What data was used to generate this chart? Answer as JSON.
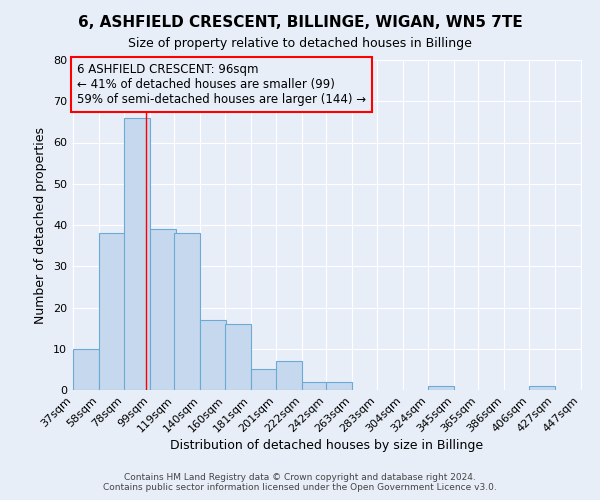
{
  "title": "6, ASHFIELD CRESCENT, BILLINGE, WIGAN, WN5 7TE",
  "subtitle": "Size of property relative to detached houses in Billinge",
  "xlabel": "Distribution of detached houses by size in Billinge",
  "ylabel": "Number of detached properties",
  "bar_left_edges": [
    37,
    58,
    78,
    99,
    119,
    140,
    160,
    181,
    201,
    222,
    242,
    263,
    283,
    304,
    324,
    345,
    365,
    386,
    406,
    427
  ],
  "bar_heights": [
    10,
    38,
    66,
    39,
    38,
    17,
    16,
    5,
    7,
    2,
    2,
    0,
    0,
    0,
    1,
    0,
    0,
    0,
    1,
    0
  ],
  "bin_width": 21,
  "tick_labels": [
    "37sqm",
    "58sqm",
    "78sqm",
    "99sqm",
    "119sqm",
    "140sqm",
    "160sqm",
    "181sqm",
    "201sqm",
    "222sqm",
    "242sqm",
    "263sqm",
    "283sqm",
    "304sqm",
    "324sqm",
    "345sqm",
    "365sqm",
    "386sqm",
    "406sqm",
    "427sqm",
    "447sqm"
  ],
  "bar_color": "#c5d8ee",
  "bar_edge_color": "#6aaad4",
  "property_line_x": 96,
  "ylim": [
    0,
    80
  ],
  "yticks": [
    0,
    10,
    20,
    30,
    40,
    50,
    60,
    70,
    80
  ],
  "annotation_title": "6 ASHFIELD CRESCENT: 96sqm",
  "annotation_line1": "← 41% of detached houses are smaller (99)",
  "annotation_line2": "59% of semi-detached houses are larger (144) →",
  "footer1": "Contains HM Land Registry data © Crown copyright and database right 2024.",
  "footer2": "Contains public sector information licensed under the Open Government Licence v3.0.",
  "background_color": "#e8eef8"
}
